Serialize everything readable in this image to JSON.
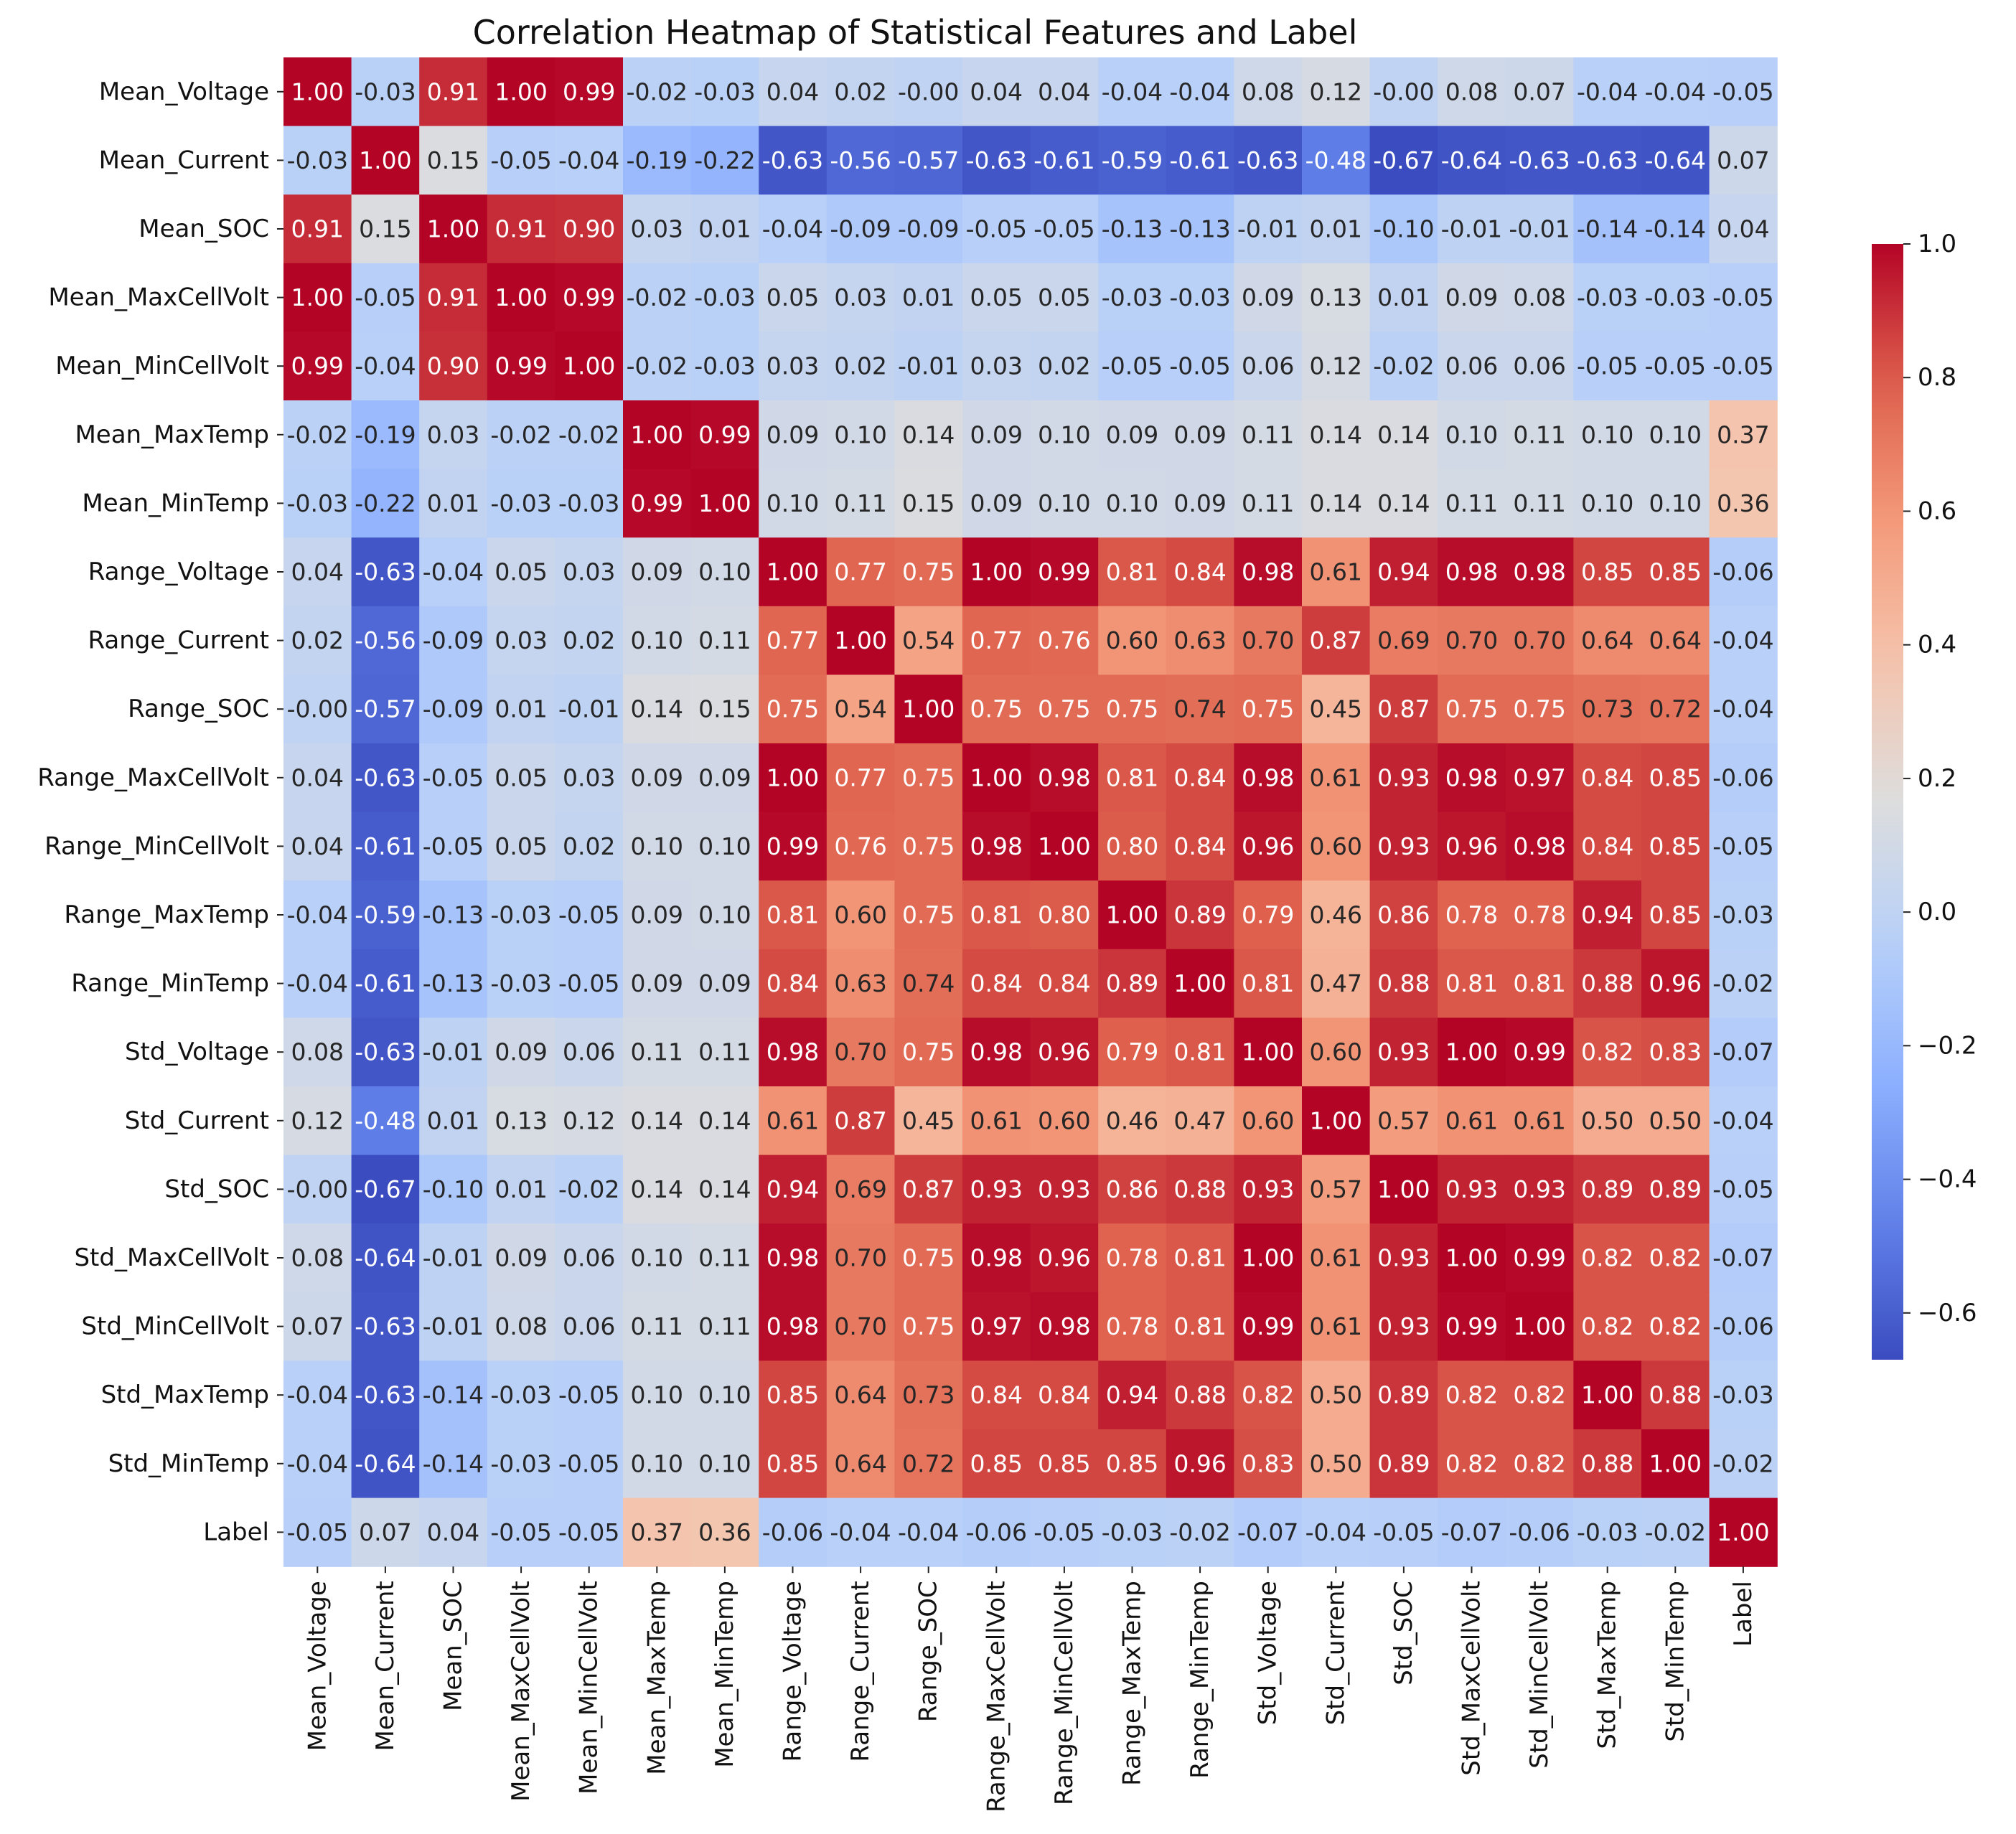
{
  "chart_data": {
    "type": "heatmap",
    "title": "Correlation Heatmap of Statistical Features and Label",
    "labels": [
      "Mean_Voltage",
      "Mean_Current",
      "Mean_SOC",
      "Mean_MaxCellVolt",
      "Mean_MinCellVolt",
      "Mean_MaxTemp",
      "Mean_MinTemp",
      "Range_Voltage",
      "Range_Current",
      "Range_SOC",
      "Range_MaxCellVolt",
      "Range_MinCellVolt",
      "Range_MaxTemp",
      "Range_MinTemp",
      "Std_Voltage",
      "Std_Current",
      "Std_SOC",
      "Std_MaxCellVolt",
      "Std_MinCellVolt",
      "Std_MaxTemp",
      "Std_MinTemp",
      "Label"
    ],
    "cell_text": [
      [
        "1.00",
        "-0.03",
        "0.91",
        "1.00",
        "0.99",
        "-0.02",
        "-0.03",
        "0.04",
        "0.02",
        "-0.00",
        "0.04",
        "0.04",
        "-0.04",
        "-0.04",
        "0.08",
        "0.12",
        "-0.00",
        "0.08",
        "0.07",
        "-0.04",
        "-0.04",
        "-0.05"
      ],
      [
        "-0.03",
        "1.00",
        "0.15",
        "-0.05",
        "-0.04",
        "-0.19",
        "-0.22",
        "-0.63",
        "-0.56",
        "-0.57",
        "-0.63",
        "-0.61",
        "-0.59",
        "-0.61",
        "-0.63",
        "-0.48",
        "-0.67",
        "-0.64",
        "-0.63",
        "-0.63",
        "-0.64",
        "0.07"
      ],
      [
        "0.91",
        "0.15",
        "1.00",
        "0.91",
        "0.90",
        "0.03",
        "0.01",
        "-0.04",
        "-0.09",
        "-0.09",
        "-0.05",
        "-0.05",
        "-0.13",
        "-0.13",
        "-0.01",
        "0.01",
        "-0.10",
        "-0.01",
        "-0.01",
        "-0.14",
        "-0.14",
        "0.04"
      ],
      [
        "1.00",
        "-0.05",
        "0.91",
        "1.00",
        "0.99",
        "-0.02",
        "-0.03",
        "0.05",
        "0.03",
        "0.01",
        "0.05",
        "0.05",
        "-0.03",
        "-0.03",
        "0.09",
        "0.13",
        "0.01",
        "0.09",
        "0.08",
        "-0.03",
        "-0.03",
        "-0.05"
      ],
      [
        "0.99",
        "-0.04",
        "0.90",
        "0.99",
        "1.00",
        "-0.02",
        "-0.03",
        "0.03",
        "0.02",
        "-0.01",
        "0.03",
        "0.02",
        "-0.05",
        "-0.05",
        "0.06",
        "0.12",
        "-0.02",
        "0.06",
        "0.06",
        "-0.05",
        "-0.05",
        "-0.05"
      ],
      [
        "-0.02",
        "-0.19",
        "0.03",
        "-0.02",
        "-0.02",
        "1.00",
        "0.99",
        "0.09",
        "0.10",
        "0.14",
        "0.09",
        "0.10",
        "0.09",
        "0.09",
        "0.11",
        "0.14",
        "0.14",
        "0.10",
        "0.11",
        "0.10",
        "0.10",
        "0.37"
      ],
      [
        "-0.03",
        "-0.22",
        "0.01",
        "-0.03",
        "-0.03",
        "0.99",
        "1.00",
        "0.10",
        "0.11",
        "0.15",
        "0.09",
        "0.10",
        "0.10",
        "0.09",
        "0.11",
        "0.14",
        "0.14",
        "0.11",
        "0.11",
        "0.10",
        "0.10",
        "0.36"
      ],
      [
        "0.04",
        "-0.63",
        "-0.04",
        "0.05",
        "0.03",
        "0.09",
        "0.10",
        "1.00",
        "0.77",
        "0.75",
        "1.00",
        "0.99",
        "0.81",
        "0.84",
        "0.98",
        "0.61",
        "0.94",
        "0.98",
        "0.98",
        "0.85",
        "0.85",
        "-0.06"
      ],
      [
        "0.02",
        "-0.56",
        "-0.09",
        "0.03",
        "0.02",
        "0.10",
        "0.11",
        "0.77",
        "1.00",
        "0.54",
        "0.77",
        "0.76",
        "0.60",
        "0.63",
        "0.70",
        "0.87",
        "0.69",
        "0.70",
        "0.70",
        "0.64",
        "0.64",
        "-0.04"
      ],
      [
        "-0.00",
        "-0.57",
        "-0.09",
        "0.01",
        "-0.01",
        "0.14",
        "0.15",
        "0.75",
        "0.54",
        "1.00",
        "0.75",
        "0.75",
        "0.75",
        "0.74",
        "0.75",
        "0.45",
        "0.87",
        "0.75",
        "0.75",
        "0.73",
        "0.72",
        "-0.04"
      ],
      [
        "0.04",
        "-0.63",
        "-0.05",
        "0.05",
        "0.03",
        "0.09",
        "0.09",
        "1.00",
        "0.77",
        "0.75",
        "1.00",
        "0.98",
        "0.81",
        "0.84",
        "0.98",
        "0.61",
        "0.93",
        "0.98",
        "0.97",
        "0.84",
        "0.85",
        "-0.06"
      ],
      [
        "0.04",
        "-0.61",
        "-0.05",
        "0.05",
        "0.02",
        "0.10",
        "0.10",
        "0.99",
        "0.76",
        "0.75",
        "0.98",
        "1.00",
        "0.80",
        "0.84",
        "0.96",
        "0.60",
        "0.93",
        "0.96",
        "0.98",
        "0.84",
        "0.85",
        "-0.05"
      ],
      [
        "-0.04",
        "-0.59",
        "-0.13",
        "-0.03",
        "-0.05",
        "0.09",
        "0.10",
        "0.81",
        "0.60",
        "0.75",
        "0.81",
        "0.80",
        "1.00",
        "0.89",
        "0.79",
        "0.46",
        "0.86",
        "0.78",
        "0.78",
        "0.94",
        "0.85",
        "-0.03"
      ],
      [
        "-0.04",
        "-0.61",
        "-0.13",
        "-0.03",
        "-0.05",
        "0.09",
        "0.09",
        "0.84",
        "0.63",
        "0.74",
        "0.84",
        "0.84",
        "0.89",
        "1.00",
        "0.81",
        "0.47",
        "0.88",
        "0.81",
        "0.81",
        "0.88",
        "0.96",
        "-0.02"
      ],
      [
        "0.08",
        "-0.63",
        "-0.01",
        "0.09",
        "0.06",
        "0.11",
        "0.11",
        "0.98",
        "0.70",
        "0.75",
        "0.98",
        "0.96",
        "0.79",
        "0.81",
        "1.00",
        "0.60",
        "0.93",
        "1.00",
        "0.99",
        "0.82",
        "0.83",
        "-0.07"
      ],
      [
        "0.12",
        "-0.48",
        "0.01",
        "0.13",
        "0.12",
        "0.14",
        "0.14",
        "0.61",
        "0.87",
        "0.45",
        "0.61",
        "0.60",
        "0.46",
        "0.47",
        "0.60",
        "1.00",
        "0.57",
        "0.61",
        "0.61",
        "0.50",
        "0.50",
        "-0.04"
      ],
      [
        "-0.00",
        "-0.67",
        "-0.10",
        "0.01",
        "-0.02",
        "0.14",
        "0.14",
        "0.94",
        "0.69",
        "0.87",
        "0.93",
        "0.93",
        "0.86",
        "0.88",
        "0.93",
        "0.57",
        "1.00",
        "0.93",
        "0.93",
        "0.89",
        "0.89",
        "-0.05"
      ],
      [
        "0.08",
        "-0.64",
        "-0.01",
        "0.09",
        "0.06",
        "0.10",
        "0.11",
        "0.98",
        "0.70",
        "0.75",
        "0.98",
        "0.96",
        "0.78",
        "0.81",
        "1.00",
        "0.61",
        "0.93",
        "1.00",
        "0.99",
        "0.82",
        "0.82",
        "-0.07"
      ],
      [
        "0.07",
        "-0.63",
        "-0.01",
        "0.08",
        "0.06",
        "0.11",
        "0.11",
        "0.98",
        "0.70",
        "0.75",
        "0.97",
        "0.98",
        "0.78",
        "0.81",
        "0.99",
        "0.61",
        "0.93",
        "0.99",
        "1.00",
        "0.82",
        "0.82",
        "-0.06"
      ],
      [
        "-0.04",
        "-0.63",
        "-0.14",
        "-0.03",
        "-0.05",
        "0.10",
        "0.10",
        "0.85",
        "0.64",
        "0.73",
        "0.84",
        "0.84",
        "0.94",
        "0.88",
        "0.82",
        "0.50",
        "0.89",
        "0.82",
        "0.82",
        "1.00",
        "0.88",
        "-0.03"
      ],
      [
        "-0.04",
        "-0.64",
        "-0.14",
        "-0.03",
        "-0.05",
        "0.10",
        "0.10",
        "0.85",
        "0.64",
        "0.72",
        "0.85",
        "0.85",
        "0.85",
        "0.96",
        "0.83",
        "0.50",
        "0.89",
        "0.82",
        "0.82",
        "0.88",
        "1.00",
        "-0.02"
      ],
      [
        "-0.05",
        "0.07",
        "0.04",
        "-0.05",
        "-0.05",
        "0.37",
        "0.36",
        "-0.06",
        "-0.04",
        "-0.04",
        "-0.06",
        "-0.05",
        "-0.03",
        "-0.02",
        "-0.07",
        "-0.04",
        "-0.05",
        "-0.07",
        "-0.06",
        "-0.03",
        "-0.02",
        "1.00"
      ]
    ],
    "colorbar": {
      "vmin": -0.67,
      "vmax": 1.0,
      "ticks": [
        -0.6,
        -0.4,
        -0.2,
        0.0,
        0.2,
        0.4,
        0.6,
        0.8,
        1.0
      ],
      "tick_labels": [
        "−0.6",
        "−0.4",
        "−0.2",
        "0.0",
        "0.2",
        "0.4",
        "0.6",
        "0.8",
        "1.0"
      ]
    },
    "colormap": "coolwarm",
    "colors": [
      "#3b4cc0",
      "#dddddd",
      "#b40426"
    ]
  }
}
